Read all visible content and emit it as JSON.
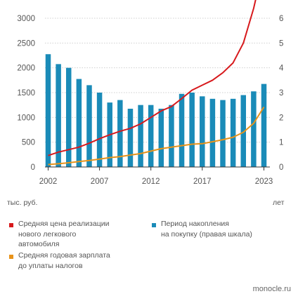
{
  "chart_data": {
    "type": "bar+line",
    "x_ticks": [
      "2002",
      "2007",
      "2012",
      "2017",
      "2023"
    ],
    "x": [
      2002,
      2003,
      2004,
      2005,
      2006,
      2007,
      2008,
      2009,
      2010,
      2011,
      2012,
      2013,
      2014,
      2015,
      2016,
      2017,
      2018,
      2019,
      2020,
      2021,
      2022,
      2023
    ],
    "left_axis": {
      "ylim": [
        0,
        3000
      ],
      "ticks": [
        "0",
        "500",
        "1000",
        "1500",
        "2000",
        "2500",
        "3000"
      ],
      "unit": "тыс. руб."
    },
    "right_axis": {
      "ylim": [
        0,
        6
      ],
      "ticks": [
        "0",
        "1",
        "2",
        "3",
        "4",
        "5",
        "6"
      ],
      "unit": "лет"
    },
    "series": [
      {
        "name": "Период накопления на покупку (правая шкала)",
        "type": "bar",
        "axis": "right",
        "color": "#1a8bb8",
        "values": [
          4.55,
          4.15,
          4.0,
          3.55,
          3.3,
          3.0,
          2.6,
          2.7,
          2.35,
          2.5,
          2.5,
          2.35,
          2.5,
          2.95,
          3.0,
          2.85,
          2.75,
          2.7,
          2.75,
          2.9,
          3.05,
          3.35
        ]
      },
      {
        "name": "Средняя цена реализации нового легкового автомобиля",
        "type": "line",
        "axis": "left",
        "color": "#d7191c",
        "values": [
          230,
          300,
          350,
          400,
          480,
          570,
          650,
          720,
          780,
          870,
          1000,
          1130,
          1220,
          1380,
          1550,
          1650,
          1750,
          1900,
          2100,
          2500,
          3200,
          4100
        ]
      },
      {
        "name": "Средняя годовая зарплата до уплаты налогов",
        "type": "line",
        "axis": "left",
        "color": "#e8931a",
        "values": [
          50,
          65,
          85,
          110,
          130,
          160,
          190,
          210,
          240,
          270,
          320,
          370,
          400,
          430,
          460,
          470,
          510,
          550,
          600,
          700,
          880,
          1210
        ]
      }
    ]
  },
  "legend": [
    {
      "key": "price",
      "color": "#d7191c",
      "lines": [
        "Средняя цена реализации",
        "нового легкового",
        "автомобиля"
      ]
    },
    {
      "key": "period",
      "color": "#1a8bb8",
      "lines": [
        "Период накопления",
        "на покупку (правая шкала)"
      ]
    },
    {
      "key": "salary",
      "color": "#e8931a",
      "lines": [
        "Средняя годовая зарплата",
        "до уплаты налогов"
      ]
    }
  ],
  "left_unit": "тыс. руб.",
  "right_unit": "лет",
  "credit": "monocle.ru"
}
